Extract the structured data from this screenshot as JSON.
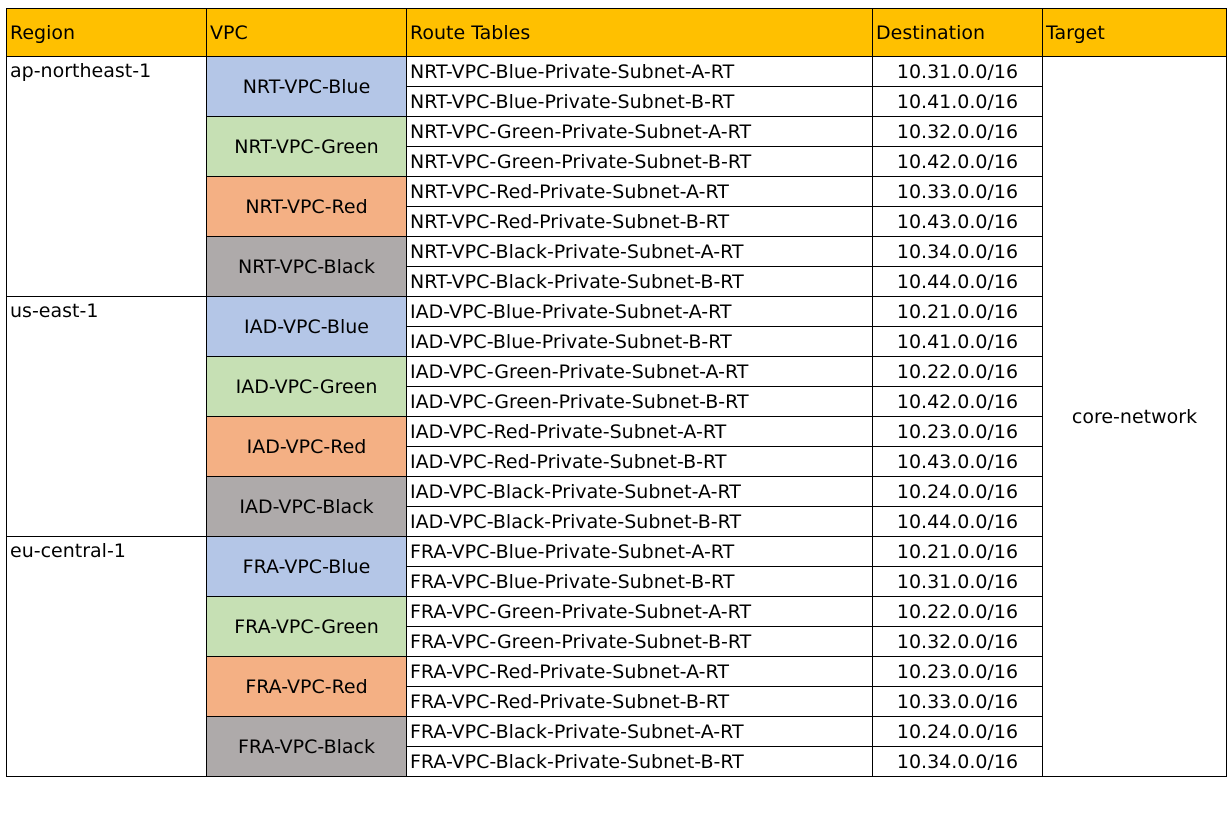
{
  "colors": {
    "header_bg": "#FFC000",
    "Blue": "#B4C6E7",
    "Green": "#C6E0B4",
    "Red": "#F4B084",
    "Black": "#AEAAAA"
  },
  "header": {
    "region": "Region",
    "vpc": "VPC",
    "route_tables": "Route Tables",
    "destination": "Destination",
    "target": "Target"
  },
  "target": "core-network",
  "regions": [
    {
      "name": "ap-northeast-1",
      "vpcs": [
        {
          "name": "NRT-VPC-Blue",
          "color": "Blue",
          "routes": [
            {
              "table": "NRT-VPC-Blue-Private-Subnet-A-RT",
              "destination": "10.31.0.0/16"
            },
            {
              "table": "NRT-VPC-Blue-Private-Subnet-B-RT",
              "destination": "10.41.0.0/16"
            }
          ]
        },
        {
          "name": "NRT-VPC-Green",
          "color": "Green",
          "routes": [
            {
              "table": "NRT-VPC-Green-Private-Subnet-A-RT",
              "destination": "10.32.0.0/16"
            },
            {
              "table": "NRT-VPC-Green-Private-Subnet-B-RT",
              "destination": "10.42.0.0/16"
            }
          ]
        },
        {
          "name": "NRT-VPC-Red",
          "color": "Red",
          "routes": [
            {
              "table": "NRT-VPC-Red-Private-Subnet-A-RT",
              "destination": "10.33.0.0/16"
            },
            {
              "table": "NRT-VPC-Red-Private-Subnet-B-RT",
              "destination": "10.43.0.0/16"
            }
          ]
        },
        {
          "name": "NRT-VPC-Black",
          "color": "Black",
          "routes": [
            {
              "table": "NRT-VPC-Black-Private-Subnet-A-RT",
              "destination": "10.34.0.0/16"
            },
            {
              "table": "NRT-VPC-Black-Private-Subnet-B-RT",
              "destination": "10.44.0.0/16"
            }
          ]
        }
      ]
    },
    {
      "name": "us-east-1",
      "vpcs": [
        {
          "name": "IAD-VPC-Blue",
          "color": "Blue",
          "routes": [
            {
              "table": "IAD-VPC-Blue-Private-Subnet-A-RT",
              "destination": "10.21.0.0/16"
            },
            {
              "table": "IAD-VPC-Blue-Private-Subnet-B-RT",
              "destination": "10.41.0.0/16"
            }
          ]
        },
        {
          "name": "IAD-VPC-Green",
          "color": "Green",
          "routes": [
            {
              "table": "IAD-VPC-Green-Private-Subnet-A-RT",
              "destination": "10.22.0.0/16"
            },
            {
              "table": "IAD-VPC-Green-Private-Subnet-B-RT",
              "destination": "10.42.0.0/16"
            }
          ]
        },
        {
          "name": "IAD-VPC-Red",
          "color": "Red",
          "routes": [
            {
              "table": "IAD-VPC-Red-Private-Subnet-A-RT",
              "destination": "10.23.0.0/16"
            },
            {
              "table": "IAD-VPC-Red-Private-Subnet-B-RT",
              "destination": "10.43.0.0/16"
            }
          ]
        },
        {
          "name": "IAD-VPC-Black",
          "color": "Black",
          "routes": [
            {
              "table": "IAD-VPC-Black-Private-Subnet-A-RT",
              "destination": "10.24.0.0/16"
            },
            {
              "table": "IAD-VPC-Black-Private-Subnet-B-RT",
              "destination": "10.44.0.0/16"
            }
          ]
        }
      ]
    },
    {
      "name": "eu-central-1",
      "vpcs": [
        {
          "name": "FRA-VPC-Blue",
          "color": "Blue",
          "routes": [
            {
              "table": "FRA-VPC-Blue-Private-Subnet-A-RT",
              "destination": "10.21.0.0/16"
            },
            {
              "table": "FRA-VPC-Blue-Private-Subnet-B-RT",
              "destination": "10.31.0.0/16"
            }
          ]
        },
        {
          "name": "FRA-VPC-Green",
          "color": "Green",
          "routes": [
            {
              "table": "FRA-VPC-Green-Private-Subnet-A-RT",
              "destination": "10.22.0.0/16"
            },
            {
              "table": "FRA-VPC-Green-Private-Subnet-B-RT",
              "destination": "10.32.0.0/16"
            }
          ]
        },
        {
          "name": "FRA-VPC-Red",
          "color": "Red",
          "routes": [
            {
              "table": "FRA-VPC-Red-Private-Subnet-A-RT",
              "destination": "10.23.0.0/16"
            },
            {
              "table": "FRA-VPC-Red-Private-Subnet-B-RT",
              "destination": "10.33.0.0/16"
            }
          ]
        },
        {
          "name": "FRA-VPC-Black",
          "color": "Black",
          "routes": [
            {
              "table": "FRA-VPC-Black-Private-Subnet-A-RT",
              "destination": "10.24.0.0/16"
            },
            {
              "table": "FRA-VPC-Black-Private-Subnet-B-RT",
              "destination": "10.34.0.0/16"
            }
          ]
        }
      ]
    }
  ]
}
